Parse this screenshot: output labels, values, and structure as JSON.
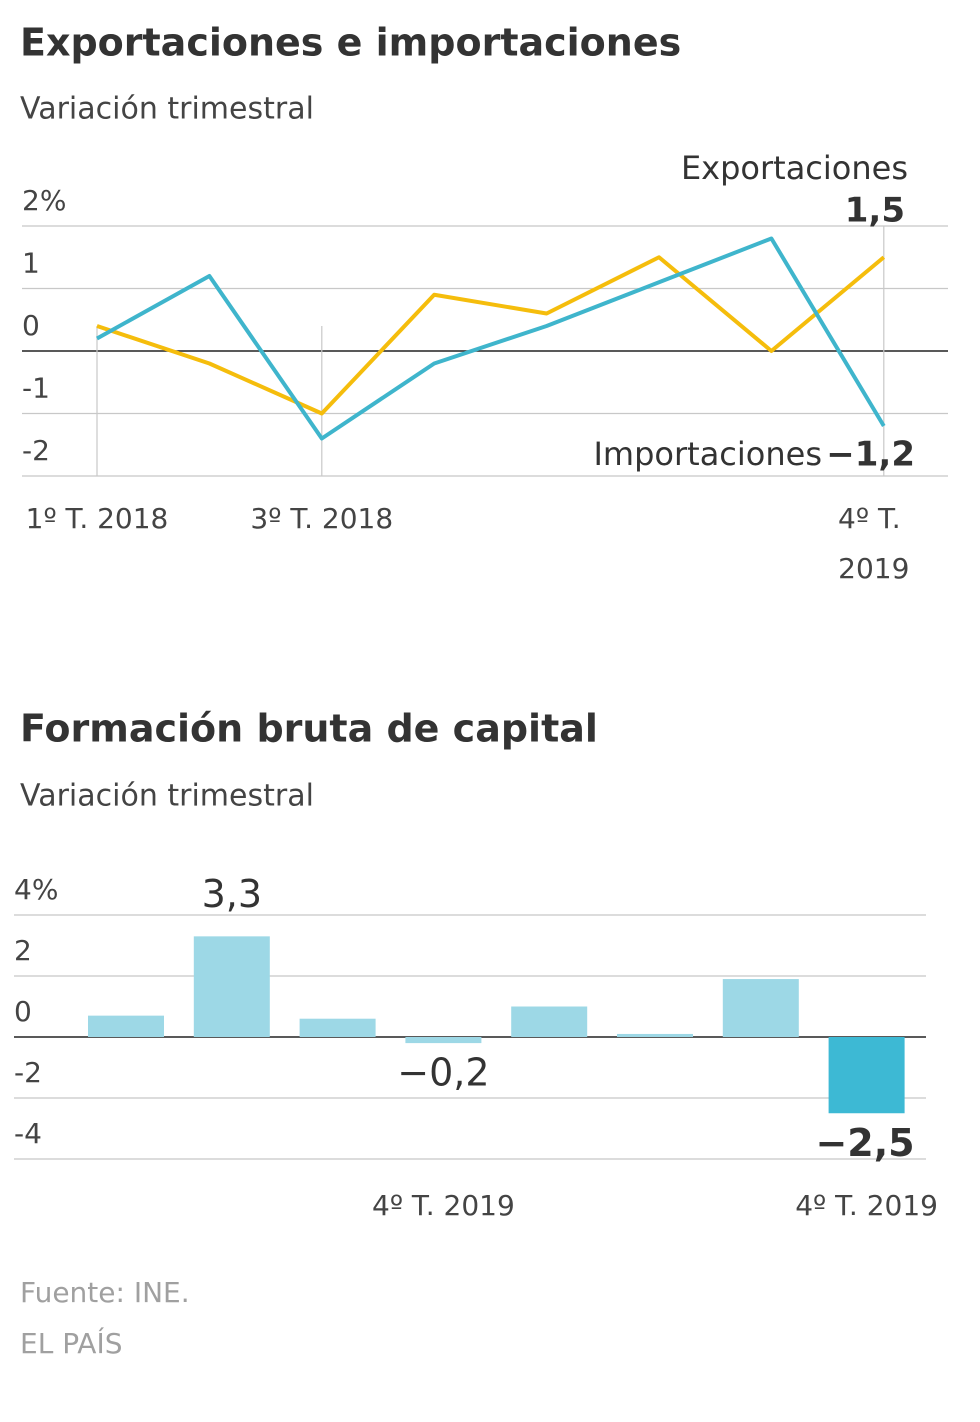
{
  "chart_data": [
    {
      "type": "line",
      "title": "Exportaciones e importaciones",
      "subtitle": "Variación trimestral",
      "categories": [
        "1º T. 2018",
        null,
        "3º T. 2018",
        null,
        null,
        null,
        null,
        "4º T. 2019"
      ],
      "series": [
        {
          "name": "Exportaciones",
          "color": "#f5bd0c",
          "values": [
            0.4,
            -0.2,
            -1.0,
            0.9,
            0.6,
            1.5,
            0.0,
            1.5
          ],
          "value_labels": [
            null,
            null,
            null,
            null,
            null,
            null,
            null,
            "1,5"
          ]
        },
        {
          "name": "Importaciones",
          "color": "#3fb5cc",
          "values": [
            0.2,
            1.2,
            -1.4,
            -0.2,
            0.4,
            1.1,
            1.8,
            -1.2
          ],
          "value_labels": [
            null,
            null,
            null,
            null,
            null,
            null,
            null,
            "−1,2"
          ]
        }
      ],
      "ylim": [
        -2,
        2
      ],
      "yticks": [
        {
          "value": 2,
          "label": "2%"
        },
        1,
        0,
        -1,
        -2
      ],
      "grid": true
    },
    {
      "type": "bar",
      "title": "Formación bruta de capital",
      "subtitle": "Variación trimestral",
      "categories": [
        null,
        null,
        null,
        "4º T. 2019",
        null,
        null,
        null,
        "4º T. 2019"
      ],
      "values": [
        0.7,
        3.3,
        0.6,
        -0.2,
        1.0,
        0.1,
        1.9,
        -2.5
      ],
      "value_labels": [
        null,
        "3,3",
        null,
        "−0,2",
        null,
        null,
        null,
        "−2,5"
      ],
      "colors": [
        "#9dd8e6",
        "#9dd8e6",
        "#9dd8e6",
        "#9dd8e6",
        "#9dd8e6",
        "#9dd8e6",
        "#9dd8e6",
        "#3db9d4"
      ],
      "ylim": [
        -4,
        4
      ],
      "yticks": [
        {
          "value": 4,
          "label": "4%"
        },
        2,
        0,
        -2,
        -4
      ],
      "grid": true
    }
  ],
  "footer": {
    "source": "Fuente: INE.",
    "credit": "EL PAÍS"
  }
}
